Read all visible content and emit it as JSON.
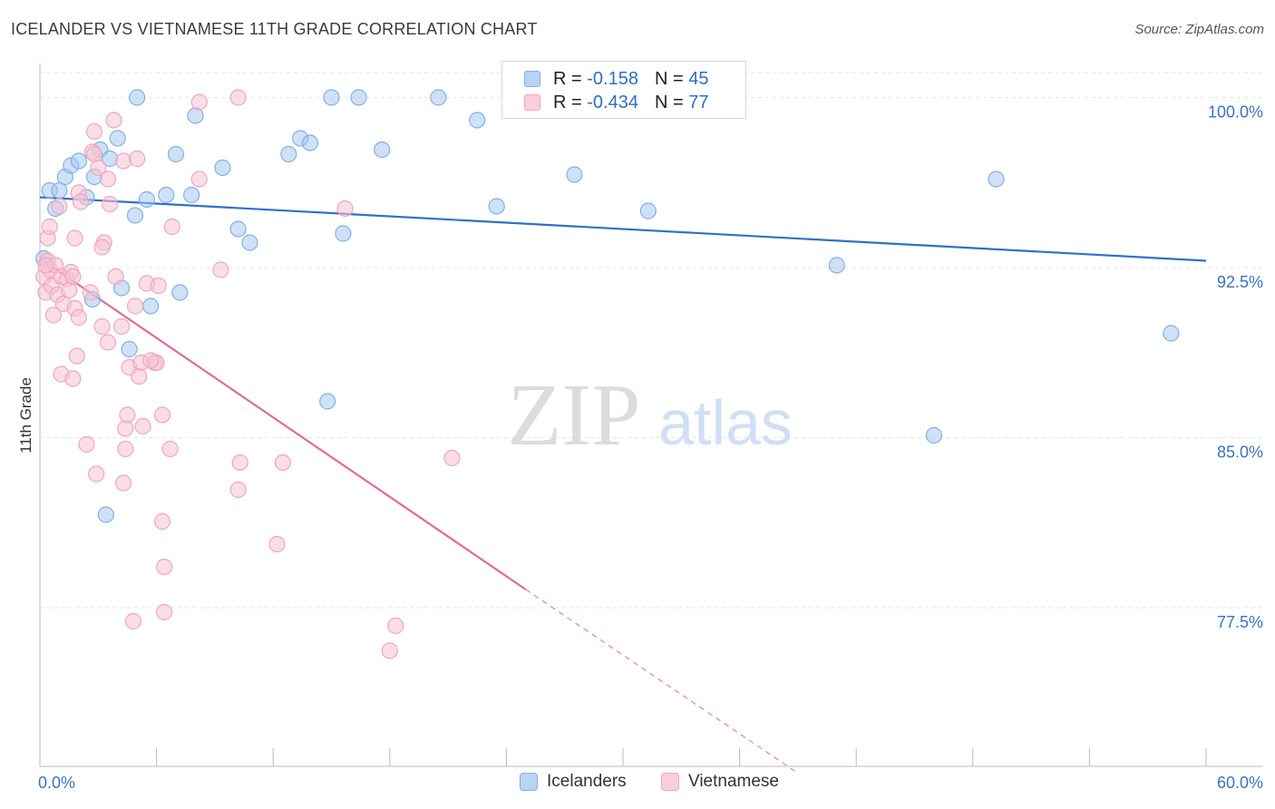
{
  "title": "ICELANDER VS VIETNAMESE 11TH GRADE CORRELATION CHART",
  "source": "Source: ZipAtlas.com",
  "watermark": {
    "zip": "ZIP",
    "atlas": "atlas"
  },
  "legend": {
    "rows": [
      {
        "r_label": "R =",
        "r_value": "-0.158",
        "n_label": "N =",
        "n_value": "45",
        "color": "#a8c8f0"
      },
      {
        "r_label": "R =",
        "r_value": "-0.434",
        "n_label": "N =",
        "n_value": "77",
        "color": "#f6b8cb"
      }
    ]
  },
  "chart_data": {
    "type": "scatter",
    "title": "ICELANDER VS VIETNAMESE 11TH GRADE CORRELATION CHART",
    "xlabel": "",
    "ylabel": "11th Grade",
    "xlim": [
      0,
      60
    ],
    "ylim": [
      70.5,
      101.5
    ],
    "x_tick_labels": [
      "0.0%",
      "60.0%"
    ],
    "y_ticks": [
      77.5,
      85.0,
      92.5,
      100.0
    ],
    "y_tick_labels": [
      "77.5%",
      "85.0%",
      "92.5%",
      "100.0%"
    ],
    "grid": true,
    "legend_position": "bottom",
    "series": [
      {
        "name": "Icelanders",
        "color": "#7fb0e8",
        "fill": "#a8c8f0",
        "trend_color": "#2f72c4",
        "trend": {
          "x0": 0,
          "y0": 95.6,
          "x1": 60,
          "y1": 92.8
        },
        "points": [
          [
            0.5,
            95.9
          ],
          [
            1.0,
            95.9
          ],
          [
            1.3,
            96.5
          ],
          [
            1.6,
            97.0
          ],
          [
            2.0,
            97.2
          ],
          [
            2.4,
            95.6
          ],
          [
            2.8,
            96.5
          ],
          [
            3.1,
            97.7
          ],
          [
            3.6,
            97.3
          ],
          [
            4.0,
            98.2
          ],
          [
            0.8,
            95.1
          ],
          [
            5.0,
            100.0
          ],
          [
            5.5,
            95.5
          ],
          [
            6.5,
            95.7
          ],
          [
            7.0,
            97.5
          ],
          [
            7.8,
            95.7
          ],
          [
            8.0,
            99.2
          ],
          [
            9.4,
            96.9
          ],
          [
            10.2,
            94.2
          ],
          [
            10.8,
            93.6
          ],
          [
            12.8,
            97.5
          ],
          [
            13.4,
            98.2
          ],
          [
            13.9,
            98.0
          ],
          [
            15.0,
            100.0
          ],
          [
            15.6,
            94.0
          ],
          [
            16.4,
            100.0
          ],
          [
            17.6,
            97.7
          ],
          [
            20.5,
            100.0
          ],
          [
            22.5,
            99.0
          ],
          [
            23.5,
            95.2
          ],
          [
            27.5,
            96.6
          ],
          [
            31.3,
            95.0
          ],
          [
            41.0,
            92.6
          ],
          [
            49.2,
            96.4
          ],
          [
            58.2,
            89.6
          ],
          [
            46.0,
            85.1
          ],
          [
            14.8,
            86.6
          ],
          [
            2.7,
            91.1
          ],
          [
            4.2,
            91.6
          ],
          [
            5.7,
            90.8
          ],
          [
            7.2,
            91.4
          ],
          [
            4.6,
            88.9
          ],
          [
            3.4,
            81.6
          ],
          [
            4.9,
            94.8
          ],
          [
            0.2,
            92.9
          ]
        ]
      },
      {
        "name": "Vietnamese",
        "color": "#f2a4bd",
        "fill": "#f6c3d3",
        "trend_color": "#e06b97",
        "trend": {
          "x0": 0,
          "y0": 92.9,
          "x1": 25,
          "y1": 78.3
        },
        "trend_dashed": {
          "x0": 25,
          "y0": 78.3,
          "x1": 39,
          "y1": 70.2
        },
        "points": [
          [
            0.2,
            92.1
          ],
          [
            0.3,
            91.4
          ],
          [
            0.4,
            92.8
          ],
          [
            0.5,
            92.4
          ],
          [
            0.6,
            91.7
          ],
          [
            0.8,
            92.6
          ],
          [
            0.9,
            91.3
          ],
          [
            1.1,
            92.1
          ],
          [
            1.2,
            90.9
          ],
          [
            1.4,
            92.0
          ],
          [
            1.5,
            91.5
          ],
          [
            1.6,
            92.3
          ],
          [
            1.8,
            90.7
          ],
          [
            2.0,
            90.3
          ],
          [
            0.7,
            90.4
          ],
          [
            1.9,
            88.6
          ],
          [
            1.1,
            87.8
          ],
          [
            1.7,
            87.6
          ],
          [
            2.4,
            84.7
          ],
          [
            2.9,
            83.4
          ],
          [
            3.2,
            89.9
          ],
          [
            3.5,
            89.2
          ],
          [
            3.9,
            92.1
          ],
          [
            4.2,
            89.9
          ],
          [
            4.6,
            88.1
          ],
          [
            4.9,
            90.8
          ],
          [
            5.2,
            88.3
          ],
          [
            5.5,
            91.8
          ],
          [
            5.9,
            88.3
          ],
          [
            6.1,
            91.7
          ],
          [
            5.1,
            87.7
          ],
          [
            4.3,
            83.0
          ],
          [
            4.4,
            85.4
          ],
          [
            4.5,
            86.0
          ],
          [
            4.4,
            84.5
          ],
          [
            5.3,
            85.5
          ],
          [
            6.3,
            86.0
          ],
          [
            6.7,
            84.5
          ],
          [
            6.3,
            81.3
          ],
          [
            6.4,
            79.3
          ],
          [
            6.4,
            77.3
          ],
          [
            4.8,
            76.9
          ],
          [
            10.3,
            83.9
          ],
          [
            10.2,
            82.7
          ],
          [
            12.5,
            83.9
          ],
          [
            12.2,
            80.3
          ],
          [
            18.0,
            75.6
          ],
          [
            18.3,
            76.7
          ],
          [
            21.2,
            84.1
          ],
          [
            9.3,
            92.4
          ],
          [
            15.7,
            95.1
          ],
          [
            0.4,
            93.8
          ],
          [
            0.5,
            94.3
          ],
          [
            1.0,
            95.2
          ],
          [
            1.8,
            93.8
          ],
          [
            2.0,
            95.8
          ],
          [
            2.1,
            95.4
          ],
          [
            2.7,
            97.6
          ],
          [
            2.8,
            97.5
          ],
          [
            3.0,
            96.9
          ],
          [
            3.3,
            93.6
          ],
          [
            3.2,
            93.4
          ],
          [
            3.5,
            96.4
          ],
          [
            3.6,
            95.3
          ],
          [
            2.8,
            98.5
          ],
          [
            3.8,
            99.0
          ],
          [
            4.3,
            97.2
          ],
          [
            5.0,
            97.3
          ],
          [
            6.8,
            94.3
          ],
          [
            8.2,
            96.4
          ],
          [
            8.2,
            99.8
          ],
          [
            10.2,
            100.0
          ],
          [
            6.0,
            88.3
          ],
          [
            5.7,
            88.4
          ],
          [
            2.6,
            91.4
          ],
          [
            1.7,
            92.1
          ],
          [
            0.3,
            92.6
          ]
        ]
      }
    ]
  },
  "bottom_legend": {
    "items": [
      {
        "label": "Icelanders",
        "color": "#a8c8f0",
        "border": "#7fb0e8"
      },
      {
        "label": "Vietnamese",
        "color": "#f6c3d3",
        "border": "#f2a4bd"
      }
    ]
  }
}
